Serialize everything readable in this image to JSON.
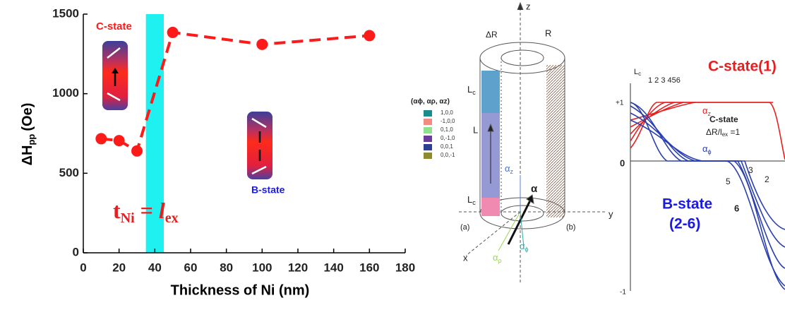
{
  "chart_data": {
    "type": "line",
    "x": [
      10,
      20,
      30,
      50,
      100,
      160
    ],
    "values": [
      717,
      705,
      640,
      1385,
      1310,
      1365
    ],
    "color": "#ff1a1a",
    "dashed": true,
    "xlim": [
      0,
      180
    ],
    "xticks": [
      0,
      20,
      40,
      60,
      80,
      100,
      120,
      140,
      160,
      180
    ],
    "ylim": [
      0,
      1500
    ],
    "yticks": [
      0,
      500,
      1000,
      1500
    ],
    "x_label": "Thickness of Ni (nm)",
    "y_label": {
      "main": "ΔH",
      "sub": "pp",
      "unit": "(Oe)"
    },
    "band": {
      "range": [
        35,
        45
      ],
      "color": "#1ff0f0"
    },
    "annotations": {
      "c_state": "C-state",
      "b_state": "B-state",
      "equation": {
        "t": "t",
        "t_sub": "Ni",
        "eq": " = ",
        "l": "l",
        "l_sub": "ex"
      }
    }
  },
  "diagram": {
    "cylinder": {
      "z": "z",
      "y": "y",
      "x": "x",
      "R": "R",
      "delta_r": "ΔR",
      "L": "L",
      "lc_top": {
        "base": "L",
        "sub": "c"
      },
      "lc_bottom": {
        "base": "L",
        "sub": "c"
      },
      "alpha": "α",
      "alpha_z": {
        "base": "α",
        "sub": "z"
      },
      "alpha_phi": {
        "base": "α",
        "sub": "ϕ"
      },
      "alpha_rho": {
        "base": "α",
        "sub": "ρ"
      },
      "panel_a": "(a)",
      "panel_b": "(b)"
    },
    "legend": {
      "title": "(αϕ, αρ, αz)",
      "entries": [
        {
          "label": "1,0,0",
          "color": "#1a8c8c"
        },
        {
          "label": "-1,0,0",
          "color": "#f28b82"
        },
        {
          "label": "0,1,0",
          "color": "#8fe08f"
        },
        {
          "label": "0,-1,0",
          "color": "#6a3d9a"
        },
        {
          "label": "0,0,1",
          "color": "#2e3f8f"
        },
        {
          "label": "0,0,-1",
          "color": "#8e8a2e"
        }
      ]
    },
    "graph": {
      "c_title": "C-state(1)",
      "b_title": "B-state",
      "b_range": "(2-6)",
      "lc": {
        "base": "L",
        "sub": "c"
      },
      "index": "1 2 3 456",
      "plus_one": "+1",
      "zero": "0",
      "minus_one": "-1",
      "alpha_z": {
        "base": "α",
        "sub": "z"
      },
      "alpha_phi": {
        "base": "α",
        "sub": "ϕ"
      },
      "inner_title": "C-state",
      "ratio": {
        "a": "ΔR/l",
        "sub": "ex",
        "b": " =1"
      },
      "curve_labels": [
        "2",
        "3",
        "5",
        "6"
      ]
    }
  }
}
